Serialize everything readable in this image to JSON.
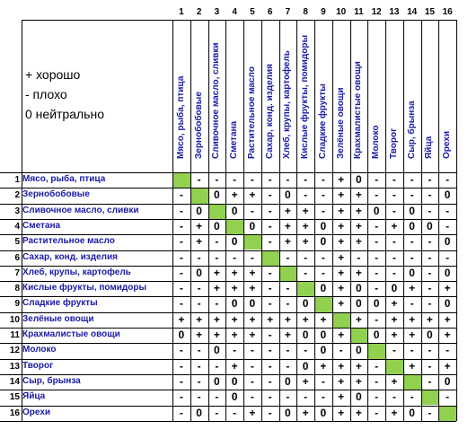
{
  "col_numbers": [
    "1",
    "2",
    "3",
    "4",
    "5",
    "6",
    "7",
    "8",
    "9",
    "10",
    "11",
    "12",
    "13",
    "14",
    "15",
    "16"
  ],
  "legend": [
    "+  хорошо",
    "-   плохо",
    "0  нейтрально"
  ],
  "foods": [
    "Мясо, рыба, птица",
    "Зернобобовые",
    "Сливочное масло, сливки",
    "Сметана",
    "Растительное масло",
    "Сахар, конд. изделия",
    "Хлеб, крупы, картофель",
    "Кислые фрукты, помидоры",
    "Сладкие фрукты",
    "Зелёные овощи",
    "Крахмалистые овощи",
    "Молоко",
    "Творог",
    "Сыр, брынза",
    "Яйца",
    "Орехи"
  ],
  "rows": [
    [
      "",
      "-",
      "-",
      "-",
      "-",
      "-",
      "-",
      "-",
      "-",
      "+",
      "0",
      "-",
      "-",
      "-",
      "-",
      "-"
    ],
    [
      "-",
      "",
      "0",
      "+",
      "+",
      "-",
      "0",
      "-",
      "-",
      "+",
      "+",
      "-",
      "-",
      "-",
      "-",
      "0"
    ],
    [
      "-",
      "0",
      "",
      "0",
      "-",
      "-",
      "+",
      "+",
      "-",
      "+",
      "+",
      "0",
      "-",
      "0",
      "-",
      "-"
    ],
    [
      "-",
      "+",
      "0",
      "",
      "0",
      "-",
      "+",
      "+",
      "0",
      "+",
      "+",
      "-",
      "+",
      "0",
      "0",
      "-"
    ],
    [
      "-",
      "+",
      "-",
      "0",
      "",
      "-",
      "+",
      "+",
      "0",
      "+",
      "+",
      "-",
      "-",
      "-",
      "-",
      "0"
    ],
    [
      "-",
      "-",
      "-",
      "-",
      "-",
      "",
      "-",
      "-",
      "-",
      "+",
      "-",
      "-",
      "-",
      "-",
      "-",
      "-"
    ],
    [
      "-",
      "0",
      "+",
      "+",
      "+",
      "-",
      "",
      "-",
      "-",
      "+",
      "+",
      "-",
      "-",
      "0",
      "-",
      "0"
    ],
    [
      "-",
      "-",
      "+",
      "+",
      "+",
      "-",
      "-",
      "",
      "0",
      "+",
      "0",
      "-",
      "0",
      "+",
      "-",
      "+"
    ],
    [
      "-",
      "-",
      "-",
      "0",
      "0",
      "-",
      "-",
      "0",
      "",
      "+",
      "0",
      "0",
      "+",
      "-",
      "-",
      "0"
    ],
    [
      "+",
      "+",
      "+",
      "+",
      "+",
      "+",
      "+",
      "+",
      "+",
      "",
      "+",
      "-",
      "+",
      "+",
      "+",
      "+"
    ],
    [
      "0",
      "+",
      "+",
      "+",
      "+",
      "-",
      "+",
      "0",
      "0",
      "+",
      "",
      "0",
      "+",
      "+",
      "0",
      "+"
    ],
    [
      "-",
      "-",
      "0",
      "-",
      "-",
      "-",
      "-",
      "-",
      "0",
      "-",
      "0",
      "",
      "-",
      "-",
      "-",
      "-"
    ],
    [
      "-",
      "-",
      "-",
      "+",
      "-",
      "-",
      "-",
      "0",
      "+",
      "+",
      "+",
      "-",
      "",
      "+",
      "-",
      "+"
    ],
    [
      "-",
      "-",
      "0",
      "0",
      "-",
      "-",
      "0",
      "+",
      "-",
      "+",
      "+",
      "-",
      "+",
      "",
      "-",
      "0"
    ],
    [
      "-",
      "-",
      "-",
      "0",
      "-",
      "-",
      "-",
      "-",
      "-",
      "+",
      "0",
      "-",
      "-",
      "-",
      "",
      "-"
    ],
    [
      "-",
      "0",
      "-",
      "-",
      "+",
      "-",
      "0",
      "+",
      "0",
      "+",
      "+",
      "-",
      "+",
      "0",
      "-",
      ""
    ]
  ]
}
